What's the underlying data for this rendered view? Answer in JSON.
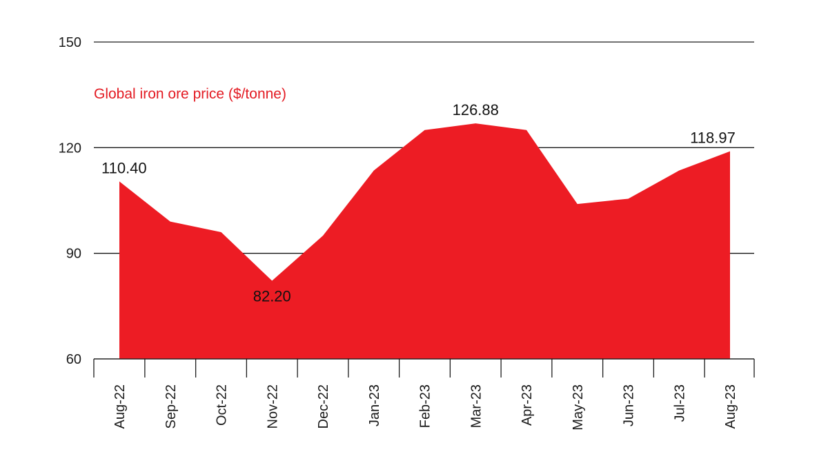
{
  "chart_data": {
    "type": "area",
    "title": "",
    "xlabel": "",
    "ylabel": "",
    "ylim": [
      60,
      150
    ],
    "yticks": [
      60,
      90,
      120,
      150
    ],
    "grid": "horizontal",
    "categories": [
      "Aug-22",
      "Sep-22",
      "Oct-22",
      "Nov-22",
      "Dec-22",
      "Jan-23",
      "Feb-23",
      "Mar-23",
      "Apr-23",
      "May-23",
      "Jun-23",
      "Jul-23",
      "Aug-23"
    ],
    "series": [
      {
        "name": "Global iron ore price ($/tonne)",
        "color": "#ed1c24",
        "values": [
          110.4,
          99.0,
          96.0,
          82.2,
          95.0,
          113.5,
          125.0,
          126.88,
          125.0,
          104.0,
          105.5,
          113.5,
          118.97
        ]
      }
    ],
    "annotations": [
      {
        "index": 0,
        "text": "110.40",
        "position": "above"
      },
      {
        "index": 3,
        "text": "82.20",
        "position": "below"
      },
      {
        "index": 7,
        "text": "126.88",
        "position": "above"
      },
      {
        "index": 12,
        "text": "118.97",
        "position": "above"
      }
    ]
  },
  "colors": {
    "area": "#ed1c24",
    "title_text": "#e31b23",
    "grid": "#1a1a1a",
    "text": "#111111"
  }
}
